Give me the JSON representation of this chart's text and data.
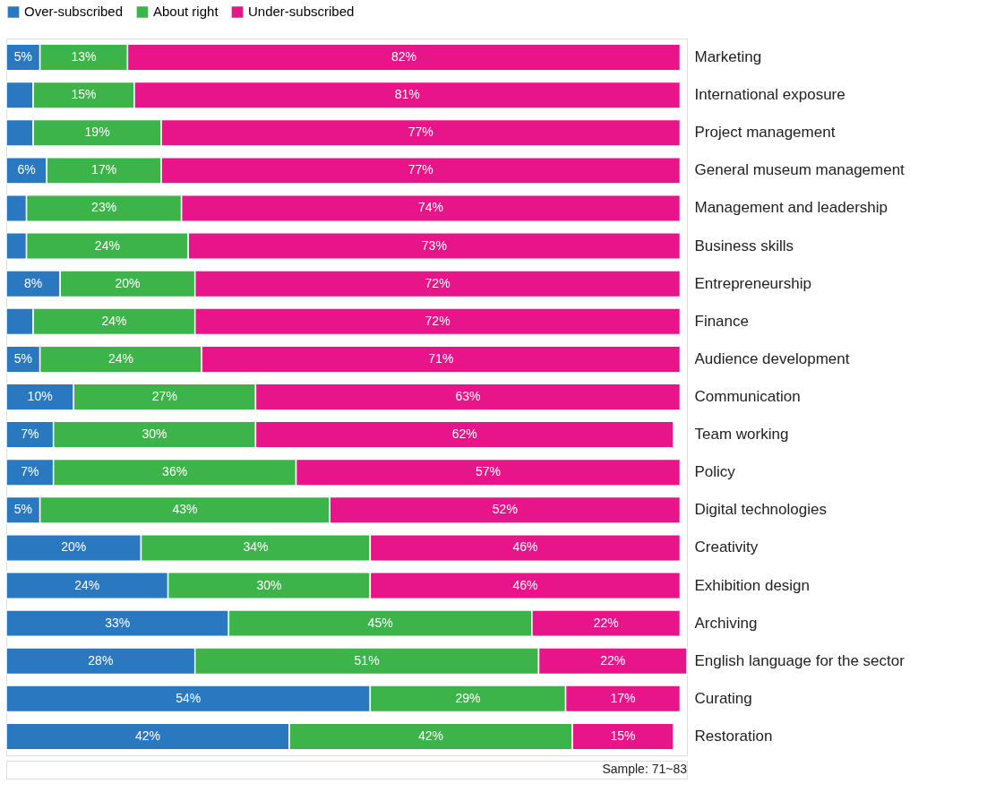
{
  "chart_data": {
    "type": "bar",
    "orientation": "horizontal",
    "stacked": true,
    "legend": "top",
    "categories": [
      "Marketing",
      "International exposure",
      "Project management",
      "General museum management",
      "Management and leadership",
      "Business skills",
      "Entrepreneurship",
      "Finance",
      "Audience development",
      "Communication",
      "Team working",
      "Policy",
      "Digital technologies",
      "Creativity",
      "Exhibition design",
      "Archiving",
      "English language for the sector",
      "Curating",
      "Restoration"
    ],
    "series": [
      {
        "name": "Over-subscribed",
        "color": "#2a78c0",
        "values": [
          5,
          4,
          4,
          6,
          3,
          3,
          8,
          4,
          5,
          10,
          7,
          7,
          5,
          20,
          24,
          33,
          28,
          54,
          42
        ],
        "value_labels": [
          "5%",
          null,
          null,
          "6%",
          null,
          null,
          "8%",
          null,
          "5%",
          "10%",
          "7%",
          "7%",
          "5%",
          "20%",
          "24%",
          "33%",
          "28%",
          "54%",
          "42%"
        ]
      },
      {
        "name": "About right",
        "color": "#3cb44a",
        "values": [
          13,
          15,
          19,
          17,
          23,
          24,
          20,
          24,
          24,
          27,
          30,
          36,
          43,
          34,
          30,
          45,
          51,
          29,
          42
        ],
        "value_labels": [
          "13%",
          "15%",
          "19%",
          "17%",
          "23%",
          "24%",
          "20%",
          "24%",
          "24%",
          "27%",
          "30%",
          "36%",
          "43%",
          "34%",
          "30%",
          "45%",
          "51%",
          "29%",
          "42%"
        ]
      },
      {
        "name": "Under-subscribed",
        "color": "#e8158a",
        "values": [
          82,
          81,
          77,
          77,
          74,
          73,
          72,
          72,
          71,
          63,
          62,
          57,
          52,
          46,
          46,
          22,
          22,
          17,
          15
        ],
        "value_labels": [
          "82%",
          "81%",
          "77%",
          "77%",
          "74%",
          "73%",
          "72%",
          "72%",
          "71%",
          "63%",
          "62%",
          "57%",
          "52%",
          "46%",
          "46%",
          "22%",
          "22%",
          "17%",
          "15%"
        ]
      }
    ],
    "annotations": [
      "Sample: 71~83"
    ]
  }
}
